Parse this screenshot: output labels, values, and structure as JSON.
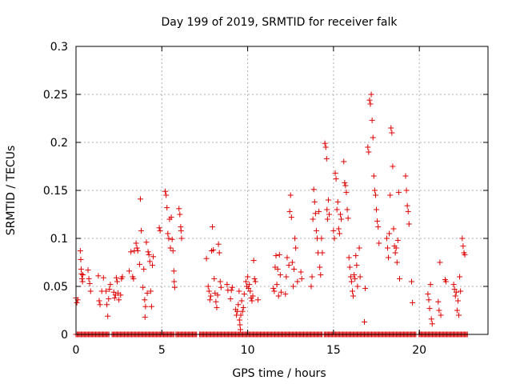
{
  "chart_data": {
    "type": "scatter",
    "title": "Day 199 of 2019, SRMTID for receiver falk",
    "xlabel": "GPS time / hours",
    "ylabel": "SRMTID / TECUs",
    "xlim": [
      0,
      24
    ],
    "ylim": [
      0,
      0.3
    ],
    "x_ticks": [
      0,
      5,
      10,
      15,
      20
    ],
    "x_tick_labels": [
      "0",
      "5",
      "10",
      "15",
      "20"
    ],
    "y_ticks": [
      0,
      0.05,
      0.1,
      0.15,
      0.2,
      0.25,
      0.3
    ],
    "y_tick_labels": [
      "0",
      "0.05",
      "0.1",
      "0.15",
      "0.2",
      "0.25",
      "0.3"
    ],
    "grid": true,
    "marker": "plus",
    "color": "#dd0000",
    "zero_band": {
      "y": 0,
      "x_start": 0.0,
      "x_end": 22.8,
      "step": 0.06,
      "gaps": [
        [
          1.95,
          2.05
        ],
        [
          5.7,
          5.8
        ],
        [
          7.05,
          7.15
        ],
        [
          14.4,
          14.45
        ],
        [
          19.85,
          19.95
        ]
      ]
    },
    "points": [
      [
        0.0,
        0.038
      ],
      [
        0.05,
        0.033
      ],
      [
        0.1,
        0.036
      ],
      [
        0.25,
        0.087
      ],
      [
        0.28,
        0.078
      ],
      [
        0.3,
        0.068
      ],
      [
        0.32,
        0.063
      ],
      [
        0.35,
        0.058
      ],
      [
        0.38,
        0.055
      ],
      [
        0.4,
        0.062
      ],
      [
        0.7,
        0.067
      ],
      [
        0.75,
        0.058
      ],
      [
        0.8,
        0.053
      ],
      [
        0.85,
        0.045
      ],
      [
        1.3,
        0.061
      ],
      [
        1.35,
        0.035
      ],
      [
        1.4,
        0.031
      ],
      [
        1.5,
        0.045
      ],
      [
        1.6,
        0.059
      ],
      [
        1.75,
        0.045
      ],
      [
        1.8,
        0.031
      ],
      [
        1.85,
        0.019
      ],
      [
        1.9,
        0.037
      ],
      [
        1.95,
        0.047
      ],
      [
        2.0,
        0.052
      ],
      [
        2.2,
        0.044
      ],
      [
        2.25,
        0.038
      ],
      [
        2.3,
        0.041
      ],
      [
        2.35,
        0.059
      ],
      [
        2.4,
        0.055
      ],
      [
        2.45,
        0.043
      ],
      [
        2.5,
        0.036
      ],
      [
        2.6,
        0.041
      ],
      [
        2.65,
        0.058
      ],
      [
        2.7,
        0.06
      ],
      [
        3.1,
        0.066
      ],
      [
        3.2,
        0.086
      ],
      [
        3.3,
        0.06
      ],
      [
        3.35,
        0.058
      ],
      [
        3.4,
        0.087
      ],
      [
        3.5,
        0.095
      ],
      [
        3.55,
        0.09
      ],
      [
        3.6,
        0.087
      ],
      [
        3.7,
        0.073
      ],
      [
        3.75,
        0.141
      ],
      [
        3.8,
        0.108
      ],
      [
        3.9,
        0.049
      ],
      [
        3.95,
        0.068
      ],
      [
        4.0,
        0.036
      ],
      [
        4.02,
        0.018
      ],
      [
        4.05,
        0.029
      ],
      [
        4.1,
        0.096
      ],
      [
        4.15,
        0.043
      ],
      [
        4.2,
        0.086
      ],
      [
        4.25,
        0.083
      ],
      [
        4.3,
        0.076
      ],
      [
        4.35,
        0.045
      ],
      [
        4.4,
        0.029
      ],
      [
        4.45,
        0.072
      ],
      [
        4.5,
        0.081
      ],
      [
        4.85,
        0.111
      ],
      [
        4.9,
        0.108
      ],
      [
        5.2,
        0.149
      ],
      [
        5.25,
        0.145
      ],
      [
        5.3,
        0.132
      ],
      [
        5.35,
        0.105
      ],
      [
        5.4,
        0.1
      ],
      [
        5.45,
        0.12
      ],
      [
        5.5,
        0.09
      ],
      [
        5.55,
        0.122
      ],
      [
        5.6,
        0.099
      ],
      [
        5.65,
        0.087
      ],
      [
        5.7,
        0.066
      ],
      [
        5.72,
        0.055
      ],
      [
        5.75,
        0.049
      ],
      [
        6.0,
        0.131
      ],
      [
        6.05,
        0.125
      ],
      [
        6.1,
        0.112
      ],
      [
        6.12,
        0.108
      ],
      [
        6.15,
        0.1
      ],
      [
        7.6,
        0.079
      ],
      [
        7.7,
        0.05
      ],
      [
        7.75,
        0.045
      ],
      [
        7.8,
        0.036
      ],
      [
        7.85,
        0.04
      ],
      [
        7.9,
        0.087
      ],
      [
        7.95,
        0.112
      ],
      [
        8.0,
        0.088
      ],
      [
        8.05,
        0.058
      ],
      [
        8.1,
        0.043
      ],
      [
        8.15,
        0.034
      ],
      [
        8.2,
        0.028
      ],
      [
        8.25,
        0.041
      ],
      [
        8.3,
        0.094
      ],
      [
        8.35,
        0.085
      ],
      [
        8.4,
        0.055
      ],
      [
        8.45,
        0.049
      ],
      [
        8.8,
        0.052
      ],
      [
        8.85,
        0.046
      ],
      [
        9.0,
        0.037
      ],
      [
        9.05,
        0.046
      ],
      [
        9.1,
        0.049
      ],
      [
        9.3,
        0.026
      ],
      [
        9.35,
        0.02
      ],
      [
        9.4,
        0.024
      ],
      [
        9.45,
        0.031
      ],
      [
        9.5,
        0.045
      ],
      [
        9.52,
        0.015
      ],
      [
        9.55,
        0.01
      ],
      [
        9.58,
        0.005
      ],
      [
        9.6,
        0.02
      ],
      [
        9.65,
        0.035
      ],
      [
        9.7,
        0.024
      ],
      [
        9.75,
        0.028
      ],
      [
        9.8,
        0.042
      ],
      [
        9.9,
        0.055
      ],
      [
        9.95,
        0.05
      ],
      [
        10.0,
        0.06
      ],
      [
        10.05,
        0.048
      ],
      [
        10.1,
        0.052
      ],
      [
        10.15,
        0.045
      ],
      [
        10.2,
        0.038
      ],
      [
        10.25,
        0.035
      ],
      [
        10.3,
        0.04
      ],
      [
        10.35,
        0.077
      ],
      [
        10.4,
        0.058
      ],
      [
        10.45,
        0.055
      ],
      [
        10.6,
        0.036
      ],
      [
        11.5,
        0.048
      ],
      [
        11.55,
        0.045
      ],
      [
        11.6,
        0.07
      ],
      [
        11.65,
        0.082
      ],
      [
        11.7,
        0.052
      ],
      [
        11.75,
        0.068
      ],
      [
        11.8,
        0.04
      ],
      [
        11.85,
        0.083
      ],
      [
        11.9,
        0.062
      ],
      [
        11.95,
        0.044
      ],
      [
        12.2,
        0.042
      ],
      [
        12.25,
        0.06
      ],
      [
        12.3,
        0.08
      ],
      [
        12.4,
        0.072
      ],
      [
        12.45,
        0.128
      ],
      [
        12.5,
        0.145
      ],
      [
        12.55,
        0.122
      ],
      [
        12.6,
        0.075
      ],
      [
        12.65,
        0.05
      ],
      [
        12.7,
        0.068
      ],
      [
        12.75,
        0.1
      ],
      [
        12.8,
        0.09
      ],
      [
        12.9,
        0.055
      ],
      [
        13.1,
        0.065
      ],
      [
        13.15,
        0.058
      ],
      [
        13.7,
        0.05
      ],
      [
        13.75,
        0.06
      ],
      [
        13.8,
        0.12
      ],
      [
        13.85,
        0.151
      ],
      [
        13.9,
        0.138
      ],
      [
        13.95,
        0.126
      ],
      [
        14.0,
        0.108
      ],
      [
        14.05,
        0.1
      ],
      [
        14.1,
        0.085
      ],
      [
        14.15,
        0.128
      ],
      [
        14.2,
        0.07
      ],
      [
        14.25,
        0.062
      ],
      [
        14.3,
        0.1
      ],
      [
        14.35,
        0.085
      ],
      [
        14.5,
        0.199
      ],
      [
        14.55,
        0.195
      ],
      [
        14.6,
        0.183
      ],
      [
        14.62,
        0.13
      ],
      [
        14.65,
        0.12
      ],
      [
        14.7,
        0.14
      ],
      [
        14.75,
        0.125
      ],
      [
        15.0,
        0.108
      ],
      [
        15.05,
        0.1
      ],
      [
        15.1,
        0.168
      ],
      [
        15.15,
        0.162
      ],
      [
        15.2,
        0.13
      ],
      [
        15.25,
        0.138
      ],
      [
        15.3,
        0.11
      ],
      [
        15.35,
        0.105
      ],
      [
        15.4,
        0.125
      ],
      [
        15.45,
        0.12
      ],
      [
        15.6,
        0.18
      ],
      [
        15.65,
        0.158
      ],
      [
        15.7,
        0.155
      ],
      [
        15.75,
        0.148
      ],
      [
        15.8,
        0.13
      ],
      [
        15.85,
        0.121
      ],
      [
        15.9,
        0.08
      ],
      [
        15.95,
        0.07
      ],
      [
        16.0,
        0.06
      ],
      [
        16.05,
        0.055
      ],
      [
        16.1,
        0.045
      ],
      [
        16.15,
        0.04
      ],
      [
        16.2,
        0.062
      ],
      [
        16.25,
        0.058
      ],
      [
        16.3,
        0.082
      ],
      [
        16.35,
        0.072
      ],
      [
        16.4,
        0.05
      ],
      [
        16.5,
        0.09
      ],
      [
        16.55,
        0.06
      ],
      [
        16.8,
        0.013
      ],
      [
        16.85,
        0.048
      ],
      [
        17.0,
        0.195
      ],
      [
        17.05,
        0.19
      ],
      [
        17.1,
        0.244
      ],
      [
        17.15,
        0.24
      ],
      [
        17.2,
        0.25
      ],
      [
        17.25,
        0.223
      ],
      [
        17.3,
        0.205
      ],
      [
        17.35,
        0.165
      ],
      [
        17.4,
        0.15
      ],
      [
        17.45,
        0.145
      ],
      [
        17.5,
        0.13
      ],
      [
        17.55,
        0.118
      ],
      [
        17.6,
        0.112
      ],
      [
        17.65,
        0.095
      ],
      [
        18.1,
        0.1
      ],
      [
        18.15,
        0.09
      ],
      [
        18.2,
        0.08
      ],
      [
        18.25,
        0.105
      ],
      [
        18.3,
        0.145
      ],
      [
        18.35,
        0.215
      ],
      [
        18.4,
        0.21
      ],
      [
        18.45,
        0.175
      ],
      [
        18.5,
        0.11
      ],
      [
        18.55,
        0.092
      ],
      [
        18.6,
        0.085
      ],
      [
        18.65,
        0.09
      ],
      [
        18.7,
        0.075
      ],
      [
        18.75,
        0.098
      ],
      [
        18.8,
        0.148
      ],
      [
        18.85,
        0.058
      ],
      [
        19.2,
        0.165
      ],
      [
        19.25,
        0.15
      ],
      [
        19.3,
        0.134
      ],
      [
        19.35,
        0.128
      ],
      [
        19.4,
        0.115
      ],
      [
        19.55,
        0.055
      ],
      [
        19.6,
        0.033
      ],
      [
        20.5,
        0.042
      ],
      [
        20.55,
        0.036
      ],
      [
        20.6,
        0.027
      ],
      [
        20.65,
        0.052
      ],
      [
        20.7,
        0.016
      ],
      [
        20.75,
        0.011
      ],
      [
        21.1,
        0.034
      ],
      [
        21.15,
        0.025
      ],
      [
        21.2,
        0.075
      ],
      [
        21.25,
        0.02
      ],
      [
        21.5,
        0.057
      ],
      [
        21.55,
        0.055
      ],
      [
        22.0,
        0.052
      ],
      [
        22.05,
        0.047
      ],
      [
        22.1,
        0.04
      ],
      [
        22.15,
        0.044
      ],
      [
        22.2,
        0.025
      ],
      [
        22.25,
        0.035
      ],
      [
        22.3,
        0.02
      ],
      [
        22.35,
        0.06
      ],
      [
        22.4,
        0.045
      ],
      [
        22.5,
        0.1
      ],
      [
        22.55,
        0.092
      ],
      [
        22.6,
        0.085
      ],
      [
        22.65,
        0.083
      ]
    ]
  }
}
